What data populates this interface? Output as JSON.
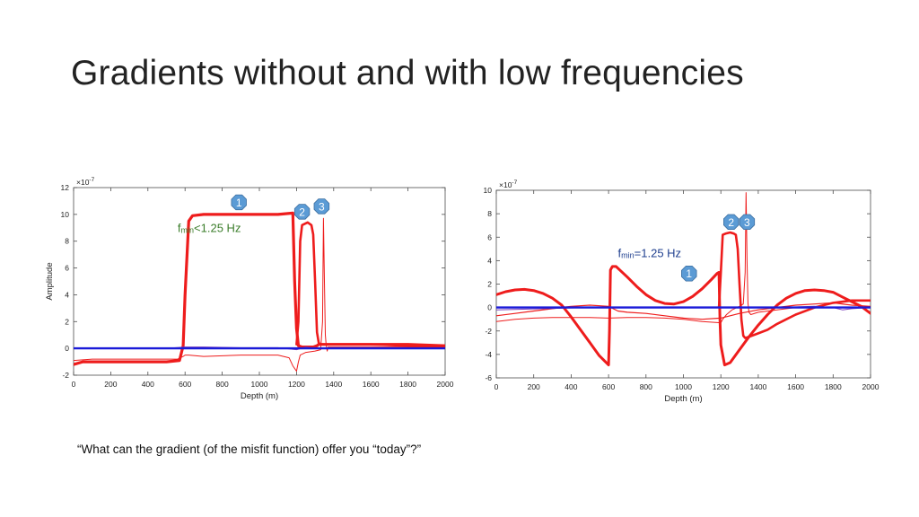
{
  "slide": {
    "title": "Gradients without and with low frequencies",
    "caption": "“What can the gradient (of the misfit function) offer you “today”?”"
  },
  "chart_data": [
    {
      "type": "line",
      "xlabel": "Depth (m)",
      "ylabel": "Amplitude",
      "exponent": "10",
      "exponent_power": "-7",
      "xlim": [
        0,
        2000
      ],
      "ylim": [
        -2,
        12
      ],
      "xticks": [
        "0",
        "200",
        "400",
        "600",
        "800",
        "1000",
        "1200",
        "1400",
        "1600",
        "1800",
        "2000"
      ],
      "yticks": [
        "-2",
        "0",
        "2",
        "4",
        "6",
        "8",
        "10",
        "12"
      ],
      "annotation": {
        "prefix": "f",
        "sub": "min",
        "text": "<1.25 Hz",
        "color": "#3a7d2a",
        "x": 560,
        "y": 8.7
      },
      "markers": [
        {
          "label": "1",
          "x": 890,
          "y": 10.9
        },
        {
          "label": "2",
          "x": 1230,
          "y": 10.2
        },
        {
          "label": "3",
          "x": 1335,
          "y": 10.6
        }
      ],
      "series": [
        {
          "color": "#ee1c1c",
          "width": 3.2,
          "x": [
            0,
            50,
            100,
            300,
            500,
            570,
            590,
            600,
            620,
            640,
            700,
            900,
            1100,
            1180,
            1190,
            1200,
            1210,
            1230,
            1260,
            1290,
            1310,
            1320,
            1330,
            1400,
            1600,
            1800,
            2000
          ],
          "y": [
            -1.2,
            -1.0,
            -1.0,
            -1.0,
            -1.0,
            -0.9,
            0.2,
            4,
            9.5,
            9.9,
            10.0,
            10.0,
            10.0,
            10.1,
            5,
            1.5,
            0.2,
            0.1,
            0.1,
            0.1,
            0.2,
            0.3,
            0.3,
            0.3,
            0.3,
            0.3,
            0.2
          ]
        },
        {
          "color": "#ee1c1c",
          "width": 2.6,
          "x": [
            1200,
            1210,
            1220,
            1230,
            1260,
            1280,
            1290,
            1300,
            1310,
            1320,
            1330,
            1350,
            1400,
            1600,
            1800,
            2000
          ],
          "y": [
            0.3,
            2,
            8,
            9.2,
            9.4,
            9.2,
            8.5,
            5,
            1.2,
            0.4,
            0.3,
            0.3,
            0.3,
            0.3,
            0.2,
            0.2
          ]
        },
        {
          "color": "#ee1c1c",
          "width": 1.0,
          "x": [
            0,
            100,
            300,
            500,
            560,
            590,
            600,
            620,
            700,
            900,
            1100,
            1160,
            1180,
            1200,
            1210,
            1220,
            1250,
            1300,
            1330,
            1340,
            1345,
            1350,
            1355,
            1360,
            1365,
            1370,
            1400,
            1600,
            1800,
            2000
          ],
          "y": [
            -0.9,
            -0.8,
            -0.8,
            -0.8,
            -0.8,
            -0.6,
            -0.5,
            -0.5,
            -0.6,
            -0.5,
            -0.5,
            -0.7,
            -1.3,
            -1.7,
            -1.0,
            -0.5,
            -0.3,
            -0.2,
            -0.1,
            2,
            9.7,
            5,
            1,
            0.2,
            -0.2,
            0.1,
            0.1,
            0.1,
            0.1,
            0.1
          ]
        },
        {
          "color": "#7a3cb8",
          "width": 1.0,
          "x": [
            0,
            200,
            500,
            600,
            700,
            900,
            1100,
            1200,
            1250,
            1300,
            1400,
            1600,
            1800,
            1900,
            2000
          ],
          "y": [
            0.0,
            0.0,
            0.0,
            0.1,
            0.1,
            0.05,
            0.05,
            -0.1,
            0.1,
            0.0,
            0.05,
            0.05,
            0.05,
            0.0,
            0.0
          ]
        },
        {
          "color": "#1a1ad8",
          "width": 2.4,
          "x": [
            0,
            2000
          ],
          "y": [
            0,
            0
          ]
        }
      ]
    },
    {
      "type": "line",
      "xlabel": "Depth (m)",
      "ylabel": "",
      "exponent": "10",
      "exponent_power": "-7",
      "xlim": [
        0,
        2000
      ],
      "ylim": [
        -6,
        10
      ],
      "xticks": [
        "0",
        "200",
        "400",
        "600",
        "800",
        "1000",
        "1200",
        "1400",
        "1600",
        "1800",
        "2000"
      ],
      "yticks": [
        "-6",
        "-4",
        "-2",
        "0",
        "2",
        "4",
        "6",
        "8",
        "10"
      ],
      "annotation": {
        "prefix": "f",
        "sub": "min",
        "text": "=1.25 Hz",
        "color": "#1f3f8f",
        "x": 650,
        "y": 4.3
      },
      "markers": [
        {
          "label": "1",
          "x": 1030,
          "y": 2.9
        },
        {
          "label": "2",
          "x": 1255,
          "y": 7.3
        },
        {
          "label": "3",
          "x": 1340,
          "y": 7.3
        }
      ],
      "series": [
        {
          "color": "#ee1c1c",
          "width": 3.0,
          "x": [
            0,
            50,
            100,
            150,
            200,
            250,
            300,
            350,
            400,
            450,
            500,
            550,
            600,
            605,
            610,
            620,
            640,
            660,
            700,
            750,
            800,
            850,
            900,
            950,
            1000,
            1050,
            1100,
            1150,
            1180,
            1190,
            1195,
            1200,
            1220,
            1250,
            1300,
            1350,
            1400,
            1450,
            1500,
            1550,
            1600,
            1650,
            1700,
            1750,
            1800,
            1850,
            1900,
            1950,
            2000
          ],
          "y": [
            1.1,
            1.35,
            1.5,
            1.55,
            1.45,
            1.2,
            0.8,
            0.2,
            -0.8,
            -1.9,
            -3.0,
            -4.1,
            -4.9,
            -2,
            3.2,
            3.5,
            3.5,
            3.2,
            2.6,
            1.8,
            1.1,
            0.6,
            0.35,
            0.3,
            0.5,
            0.95,
            1.6,
            2.4,
            2.9,
            3.0,
            -1,
            -3.2,
            -4.9,
            -4.7,
            -3.6,
            -2.5,
            -1.5,
            -0.6,
            0.2,
            0.8,
            1.2,
            1.45,
            1.5,
            1.45,
            1.3,
            0.9,
            0.5,
            0.1,
            -0.5
          ]
        },
        {
          "color": "#ee1c1c",
          "width": 2.6,
          "x": [
            1190,
            1200,
            1210,
            1225,
            1250,
            1270,
            1280,
            1290,
            1300,
            1305,
            1310,
            1320,
            1330,
            1350,
            1400,
            1450,
            1500,
            1550,
            1600,
            1700,
            1800,
            1900,
            2000
          ],
          "y": [
            0,
            3,
            6.2,
            6.3,
            6.4,
            6.3,
            6.2,
            5,
            2,
            0.5,
            -1,
            -2.4,
            -2.6,
            -2.5,
            -2.2,
            -1.9,
            -1.4,
            -1.0,
            -0.6,
            0,
            0.4,
            0.6,
            0.6
          ]
        },
        {
          "color": "#ee1c1c",
          "width": 1.0,
          "x": [
            0,
            100,
            200,
            300,
            400,
            500,
            600,
            700,
            800,
            900,
            1000,
            1100,
            1200,
            1210,
            1230,
            1260,
            1300,
            1320,
            1330,
            1335,
            1340,
            1345,
            1350,
            1360,
            1400,
            1500,
            1600,
            1700,
            1800,
            1900,
            2000
          ],
          "y": [
            -1.2,
            -1.0,
            -0.9,
            -0.85,
            -0.85,
            -0.85,
            -0.9,
            -0.85,
            -0.85,
            -0.9,
            -1.0,
            -1.2,
            -1.3,
            -1.0,
            -0.6,
            -0.2,
            0.1,
            0.3,
            3,
            9.8,
            4,
            0.4,
            -0.4,
            -0.6,
            -0.4,
            -0.2,
            0.0,
            0.0,
            0.0,
            0.0,
            0.0
          ]
        },
        {
          "color": "#ee1c1c",
          "width": 1.2,
          "x": [
            0,
            100,
            200,
            300,
            400,
            500,
            600,
            650,
            700,
            800,
            900,
            1000,
            1100,
            1200,
            1300,
            1400,
            1500,
            1600,
            1700,
            1800,
            1900,
            2000
          ],
          "y": [
            -0.7,
            -0.5,
            -0.3,
            -0.1,
            0.1,
            0.2,
            0.1,
            -0.3,
            -0.4,
            -0.5,
            -0.7,
            -0.9,
            -1.0,
            -0.9,
            -0.5,
            -0.2,
            0,
            0.2,
            0.3,
            0.4,
            0.2,
            0.1
          ]
        },
        {
          "color": "#7a3cb8",
          "width": 1.0,
          "x": [
            0,
            500,
            700,
            1000,
            1300,
            1500,
            1700,
            1800,
            1850,
            1900,
            2000
          ],
          "y": [
            -0.2,
            0.0,
            0.05,
            0.0,
            0.0,
            0.0,
            0.1,
            0.0,
            -0.2,
            -0.1,
            0.0
          ]
        },
        {
          "color": "#1a1ad8",
          "width": 2.4,
          "x": [
            0,
            2000
          ],
          "y": [
            0,
            0
          ]
        }
      ]
    }
  ]
}
